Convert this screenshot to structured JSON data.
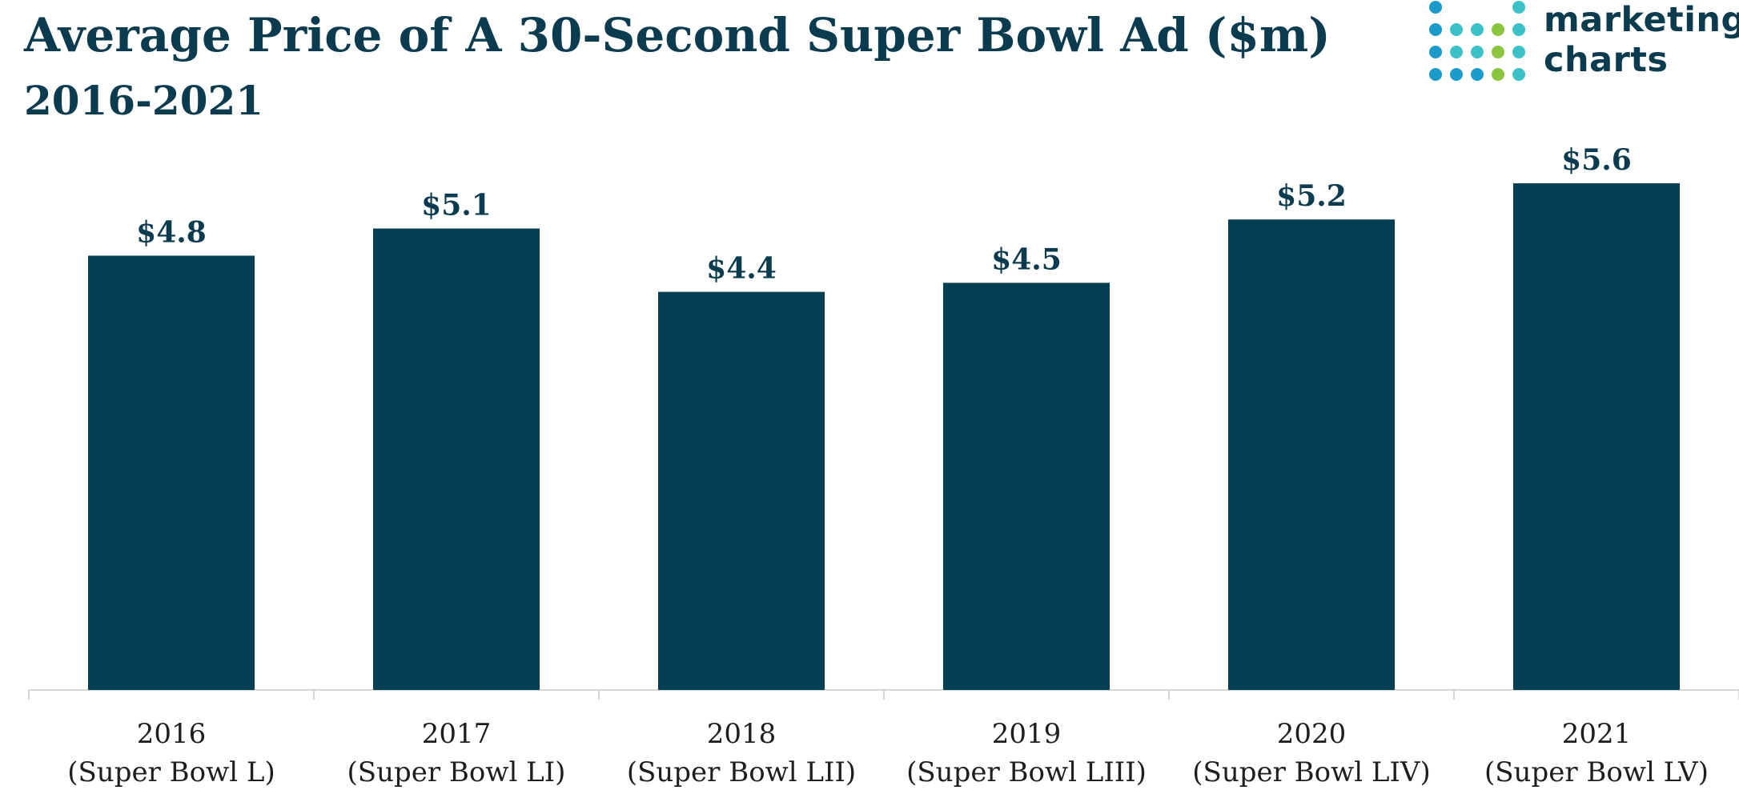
{
  "colors": {
    "bar": "#033f52",
    "text": "#0a3b4f",
    "axis": "#d6d6d6",
    "logo_dark": "#0a3b4f",
    "logo_blue": "#1a9bc9",
    "logo_teal": "#3cc1c9",
    "logo_green": "#8bc53f"
  },
  "logo": {
    "line1": "marketing",
    "line2": "charts",
    "dot_colors": [
      [
        "logo_blue",
        "none",
        "none",
        "none",
        "logo_teal"
      ],
      [
        "logo_blue",
        "logo_teal",
        "logo_teal",
        "logo_green",
        "logo_teal"
      ],
      [
        "logo_blue",
        "logo_teal",
        "logo_teal",
        "logo_green",
        "logo_teal"
      ],
      [
        "logo_blue",
        "logo_blue",
        "logo_blue",
        "logo_green",
        "logo_teal"
      ]
    ]
  },
  "chart_data": {
    "type": "bar",
    "title": "Average Price of A 30-Second Super Bowl Ad ($m)",
    "subtitle": "2016-2021",
    "categories": [
      [
        "2016",
        "(Super Bowl L)"
      ],
      [
        "2017",
        "(Super Bowl LI)"
      ],
      [
        "2018",
        "(Super Bowl LII)"
      ],
      [
        "2019",
        "(Super Bowl LIII)"
      ],
      [
        "2020",
        "(Super Bowl LIV)"
      ],
      [
        "2021",
        "(Super Bowl LV)"
      ]
    ],
    "values": [
      4.8,
      5.1,
      4.4,
      4.5,
      5.2,
      5.6
    ],
    "data_labels": [
      "$4.8",
      "$5.1",
      "$4.4",
      "$4.5",
      "$5.2",
      "$5.6"
    ],
    "xlabel": "",
    "ylabel": "",
    "ylim": [
      0,
      5.6
    ],
    "grid": false,
    "legend": "none"
  }
}
